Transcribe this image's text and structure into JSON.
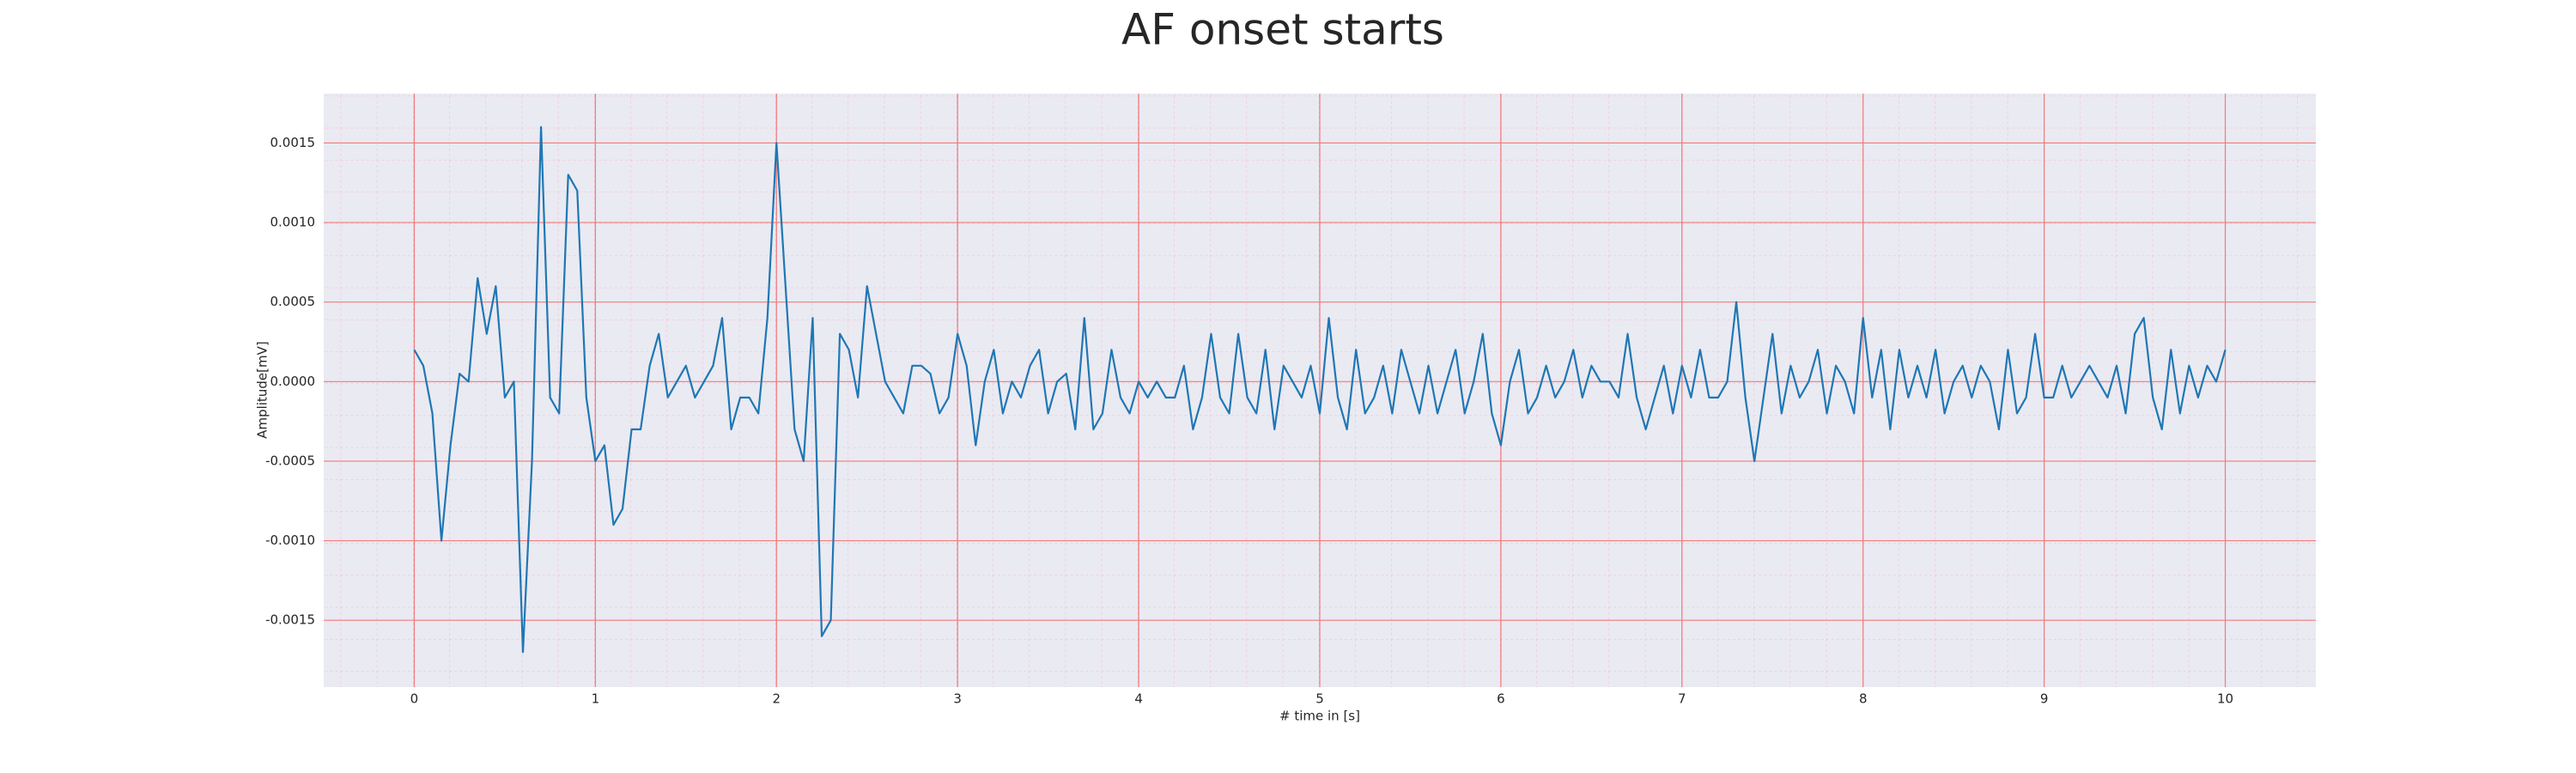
{
  "chart_data": {
    "type": "line",
    "title": "AF onset starts",
    "x_label": "# time in [s]",
    "y_label": "Amplitude[mV]",
    "x": [
      0,
      0.05,
      0.1,
      0.15,
      0.2,
      0.25,
      0.3,
      0.35,
      0.4,
      0.45,
      0.5,
      0.55,
      0.6,
      0.65,
      0.7,
      0.75,
      0.8,
      0.85,
      0.9,
      0.95,
      1,
      1.05,
      1.1,
      1.15,
      1.2,
      1.25,
      1.3,
      1.35,
      1.4,
      1.45,
      1.5,
      1.55,
      1.6,
      1.65,
      1.7,
      1.75,
      1.8,
      1.85,
      1.9,
      1.95,
      2,
      2.05,
      2.1,
      2.15,
      2.2,
      2.25,
      2.3,
      2.35,
      2.4,
      2.45,
      2.5,
      2.55,
      2.6,
      2.65,
      2.7,
      2.75,
      2.8,
      2.85,
      2.9,
      2.95,
      3,
      3.05,
      3.1,
      3.15,
      3.2,
      3.25,
      3.3,
      3.35,
      3.4,
      3.45,
      3.5,
      3.55,
      3.6,
      3.65,
      3.7,
      3.75,
      3.8,
      3.85,
      3.9,
      3.95,
      4,
      4.05,
      4.1,
      4.15,
      4.2,
      4.25,
      4.3,
      4.35,
      4.4,
      4.45,
      4.5,
      4.55,
      4.6,
      4.65,
      4.7,
      4.75,
      4.8,
      4.85,
      4.9,
      4.95,
      5,
      5.05,
      5.1,
      5.15,
      5.2,
      5.25,
      5.3,
      5.35,
      5.4,
      5.45,
      5.5,
      5.55,
      5.6,
      5.65,
      5.7,
      5.75,
      5.8,
      5.85,
      5.9,
      5.95,
      6,
      6.05,
      6.1,
      6.15,
      6.2,
      6.25,
      6.3,
      6.35,
      6.4,
      6.45,
      6.5,
      6.55,
      6.6,
      6.65,
      6.7,
      6.75,
      6.8,
      6.85,
      6.9,
      6.95,
      7,
      7.05,
      7.1,
      7.15,
      7.2,
      7.25,
      7.3,
      7.35,
      7.4,
      7.45,
      7.5,
      7.55,
      7.6,
      7.65,
      7.7,
      7.75,
      7.8,
      7.85,
      7.9,
      7.95,
      8,
      8.05,
      8.1,
      8.15,
      8.2,
      8.25,
      8.3,
      8.35,
      8.4,
      8.45,
      8.5,
      8.55,
      8.6,
      8.65,
      8.7,
      8.75,
      8.8,
      8.85,
      8.9,
      8.95,
      9,
      9.05,
      9.1,
      9.15,
      9.2,
      9.25,
      9.3,
      9.35,
      9.4,
      9.45,
      9.5,
      9.55,
      9.6,
      9.65,
      9.7,
      9.75,
      9.8,
      9.85,
      9.9,
      9.95,
      10
    ],
    "series": [
      {
        "color": "#1f77b4",
        "values": [
          0.0002,
          0.0001,
          -0.0002,
          -0.001,
          -0.0004,
          5e-05,
          0,
          0.00065,
          0.0003,
          0.0006,
          -0.0001,
          0,
          -0.0017,
          -0.0005,
          0.0016,
          -0.0001,
          -0.0002,
          0.0013,
          0.0012,
          -0.0001,
          -0.0005,
          -0.0004,
          -0.0009,
          -0.0008,
          -0.0003,
          -0.0003,
          0.0001,
          0.0003,
          -0.0001,
          0,
          0.0001,
          -0.0001,
          0,
          0.0001,
          0.0004,
          -0.0003,
          -0.0001,
          -0.0001,
          -0.0002,
          0.0004,
          0.0015,
          0.0006,
          -0.0003,
          -0.0005,
          0.0004,
          -0.0016,
          -0.0015,
          0.0003,
          0.0002,
          -0.0001,
          0.0006,
          0.0003,
          0,
          -0.0001,
          -0.0002,
          0.0001,
          0.0001,
          5e-05,
          -0.0002,
          -0.0001,
          0.0003,
          0.0001,
          -0.0004,
          0,
          0.0002,
          -0.0002,
          0,
          -0.0001,
          0.0001,
          0.0002,
          -0.0002,
          0,
          5e-05,
          -0.0003,
          0.0004,
          -0.0003,
          -0.0002,
          0.0002,
          -0.0001,
          -0.0002,
          0,
          -0.0001,
          0,
          -0.0001,
          -0.0001,
          0.0001,
          -0.0003,
          -0.0001,
          0.0003,
          -0.0001,
          -0.0002,
          0.0003,
          -0.0001,
          -0.0002,
          0.0002,
          -0.0003,
          0.0001,
          0,
          -0.0001,
          0.0001,
          -0.0002,
          0.0004,
          -0.0001,
          -0.0003,
          0.0002,
          -0.0002,
          -0.0001,
          0.0001,
          -0.0002,
          0.0002,
          0,
          -0.0002,
          0.0001,
          -0.0002,
          0,
          0.0002,
          -0.0002,
          0,
          0.0003,
          -0.0002,
          -0.0004,
          0,
          0.0002,
          -0.0002,
          -0.0001,
          0.0001,
          -0.0001,
          0,
          0.0002,
          -0.0001,
          0.0001,
          0,
          0,
          -0.0001,
          0.0003,
          -0.0001,
          -0.0003,
          -0.0001,
          0.0001,
          -0.0002,
          0.0001,
          -0.0001,
          0.0002,
          -0.0001,
          -0.0001,
          0,
          0.0005,
          -0.0001,
          -0.0005,
          -0.0001,
          0.0003,
          -0.0002,
          0.0001,
          -0.0001,
          0,
          0.0002,
          -0.0002,
          0.0001,
          0,
          -0.0002,
          0.0004,
          -0.0001,
          0.0002,
          -0.0003,
          0.0002,
          -0.0001,
          0.0001,
          -0.0001,
          0.0002,
          -0.0002,
          0,
          0.0001,
          -0.0001,
          0.0001,
          0,
          -0.0003,
          0.0002,
          -0.0002,
          -0.0001,
          0.0003,
          -0.0001,
          -0.0001,
          0.0001,
          -0.0001,
          0,
          0.0001,
          0,
          -0.0001,
          0.0001,
          -0.0002,
          0.0003,
          0.0004,
          -0.0001,
          -0.0003,
          0.0002,
          -0.0002,
          0.0001,
          -0.0001,
          0.0001,
          0,
          0.0002
        ]
      }
    ],
    "xlim": [
      -0.5,
      10.5
    ],
    "ylim": [
      -0.00192,
      0.00181
    ],
    "xticks": [
      0,
      1,
      2,
      3,
      4,
      5,
      6,
      7,
      8,
      9,
      10
    ],
    "yticks": [
      {
        "value": -0.0015,
        "label": "-0.0015"
      },
      {
        "value": -0.001,
        "label": "-0.0010"
      },
      -0.0005,
      {
        "value": 0,
        "label": "0.0000"
      },
      0.0005,
      {
        "value": 0.001,
        "label": "0.0010"
      },
      0.0015
    ],
    "grid": true
  }
}
